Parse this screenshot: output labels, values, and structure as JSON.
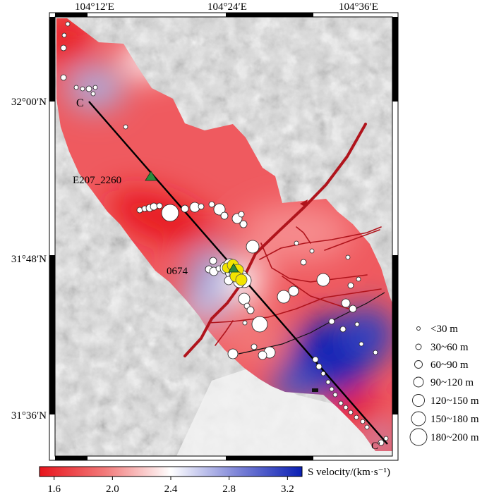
{
  "map": {
    "lon_labels": [
      "104°12′E",
      "104°24′E",
      "104°36′E"
    ],
    "lat_labels": [
      "32°00′N",
      "31°48′N",
      "31°36′N"
    ],
    "profile": {
      "start_label": "C",
      "end_label": "C′"
    },
    "stations": [
      {
        "label": "E207_2260",
        "color": "#2e8b3e"
      },
      {
        "label": "0674",
        "color": "#2e8b3e"
      }
    ],
    "fault_color": "#b0141c",
    "profile_line_color": "#000000",
    "event_color": "#f2e400"
  },
  "size_legend": {
    "items": [
      "<30 m",
      "30~60 m",
      "60~90 m",
      "90~120 m",
      "120~150 m",
      "150~180 m",
      "180~200 m"
    ]
  },
  "colorbar": {
    "title": "S velocity/(km·s⁻¹)",
    "ticks": [
      "1.6",
      "2.0",
      "2.4",
      "2.8",
      "3.2"
    ],
    "range": [
      1.5,
      3.3
    ],
    "low_color": "#e8141c",
    "mid_color": "#ffffff",
    "high_color": "#0a1fb4"
  }
}
